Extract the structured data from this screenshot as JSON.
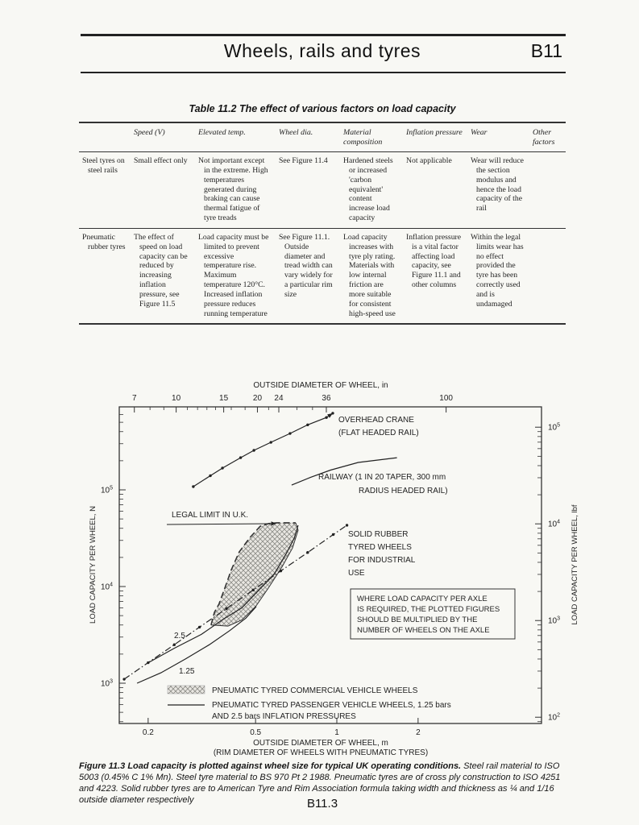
{
  "page": {
    "header": {
      "title": "Wheels, rails and tyres",
      "section": "B11"
    },
    "footer": {
      "page_number": "B11.3"
    }
  },
  "table": {
    "title": "Table 11.2  The effect of various factors on load capacity",
    "headers": [
      "",
      "Speed (V)",
      "Elevated temp.",
      "Wheel dia.",
      "Material composition",
      "Inflation pressure",
      "Wear",
      "Other factors"
    ],
    "rows": [
      [
        "Steel tyres on steel rails",
        "Small effect only",
        "Not important except in the extreme. High temperatures generated during braking can cause thermal fatigue of tyre treads",
        "See Figure 11.4",
        "Hardened steels or increased 'carbon equivalent' content increase load capacity",
        "Not applicable",
        "Wear will reduce the section modulus and hence the load capacity of the rail",
        ""
      ],
      [
        "Pneumatic rubber tyres",
        "The effect of speed on load capacity can be reduced by increasing inflation pressure, see Figure 11.5",
        "Load capacity must be limited to prevent excessive temperature rise. Maximum temperature 120°C. Increased inflation pressure reduces running temperature",
        "See Figure 11.1. Outside diameter and tread width can vary widely for a particular rim size",
        "Load capacity increases with tyre ply rating. Materials with low internal friction are more suitable for consistent high-speed use",
        "Inflation pressure is a vital factor affecting load capacity, see Figure 11.1 and other columns",
        "Within the legal limits wear has no effect provided the tyre has been correctly used and is undamaged",
        ""
      ]
    ]
  },
  "caption": {
    "bold": "Figure 11.3  Load capacity is plotted against wheel size for typical UK operating conditions.",
    "rest": " Steel rail material to ISO 5003 (0.45% C 1% Mn). Steel tyre material to BS 970 Pt 2 1988. Pneumatic tyres are of cross ply construction to ISO 4251 and 4223. Solid rubber tyres are to American Tyre and Rim Association formula taking width and thickness as ¼ and 1/16 outside diameter respectively"
  },
  "chart_data": {
    "type": "line",
    "x_axis": {
      "scale": "log",
      "top": {
        "label": "OUTSIDE DIAMETER OF WHEEL, in",
        "unit": "in",
        "major_ticks": [
          7,
          10,
          15,
          20,
          24,
          36,
          100
        ],
        "minor_ticks": [
          8,
          9,
          11,
          12,
          13,
          14,
          16,
          18,
          22,
          28,
          32
        ]
      },
      "bottom": {
        "label": "OUTSIDE DIAMETER OF WHEEL, m",
        "sublabel": "(RIM DIAMETER OF WHEELS WITH PNEUMATIC TYRES)",
        "unit": "m",
        "major_ticks": [
          0.2,
          0.5,
          1,
          2
        ]
      },
      "range_m": [
        0.156,
        5.7
      ]
    },
    "y_axis": {
      "scale": "log",
      "left": {
        "label": "LOAD CAPACITY PER WHEEL, N",
        "unit": "N",
        "major_tick_exponents": [
          5,
          4,
          3
        ]
      },
      "right": {
        "label": "LOAD CAPACITY PER WHEEL, lbf",
        "unit": "lbf",
        "major_tick_exponents": [
          5,
          4,
          3,
          2
        ]
      },
      "range_N": [
        383,
        720000
      ],
      "newtons_per_lbf": 4.448
    },
    "series": [
      {
        "id": "overhead_crane",
        "label_lines": [
          "OVERHEAD CRANE",
          "(FLAT HEADED RAIL)"
        ],
        "style": "solid",
        "markers": true,
        "arrow_end": true,
        "points_m_N": [
          [
            0.294,
            108000
          ],
          [
            0.34,
            140000
          ],
          [
            0.377,
            168000
          ],
          [
            0.44,
            215000
          ],
          [
            0.493,
            256000
          ],
          [
            0.57,
            310000
          ],
          [
            0.671,
            383000
          ],
          [
            0.78,
            470000
          ],
          [
            0.915,
            560000
          ],
          [
            0.966,
            620000
          ]
        ]
      },
      {
        "id": "railway",
        "label_lines": [
          "RAILWAY (1 IN 20 TAPER, 300 mm",
          "RADIUS HEADED RAIL)"
        ],
        "style": "solid",
        "markers": false,
        "arrow_end": false,
        "points_m_N": [
          [
            0.68,
            112000
          ],
          [
            0.8,
            135000
          ],
          [
            0.947,
            160000
          ],
          [
            1.2,
            192000
          ],
          [
            1.45,
            205000
          ],
          [
            1.67,
            215000
          ]
        ]
      },
      {
        "id": "solid_rubber",
        "label_lines": [
          "SOLID RUBBER",
          "TYRED WHEELS",
          "FOR INDUSTRIAL",
          "USE"
        ],
        "style": "dash-dot",
        "markers": true,
        "arrow_end": false,
        "points_m_N": [
          [
            0.163,
            1100
          ],
          [
            0.2,
            1630
          ],
          [
            0.25,
            2500
          ],
          [
            0.31,
            3800
          ],
          [
            0.39,
            5900
          ],
          [
            0.49,
            9200
          ],
          [
            0.62,
            14500
          ],
          [
            0.78,
            22500
          ],
          [
            0.97,
            34500
          ],
          [
            1.09,
            43000
          ]
        ]
      },
      {
        "id": "passenger_2_5_bar",
        "label_lines": [
          "2.5"
        ],
        "style": "solid",
        "markers": false,
        "arrow_end": false,
        "points_m_N": [
          [
            0.202,
            1650
          ],
          [
            0.25,
            2300
          ],
          [
            0.315,
            3200
          ],
          [
            0.38,
            4600
          ],
          [
            0.444,
            6000
          ],
          [
            0.52,
            9500
          ],
          [
            0.585,
            13300
          ],
          [
            0.65,
            22000
          ],
          [
            0.695,
            31600
          ],
          [
            0.719,
            43000
          ]
        ]
      },
      {
        "id": "passenger_1_25_bar",
        "label_lines": [
          "1.25"
        ],
        "style": "solid",
        "markers": false,
        "arrow_end": false,
        "points_m_N": [
          [
            0.182,
            1000
          ],
          [
            0.223,
            1280
          ],
          [
            0.275,
            1780
          ],
          [
            0.337,
            2500
          ],
          [
            0.401,
            3500
          ],
          [
            0.46,
            4700
          ],
          [
            0.503,
            6200
          ]
        ]
      }
    ],
    "region": {
      "id": "commercial_vehicle_wheels",
      "fill": "crosshatch",
      "upper_boundary_m_N": [
        [
          0.342,
          4000
        ],
        [
          0.352,
          5400
        ],
        [
          0.366,
          6600
        ],
        [
          0.385,
          9700
        ],
        [
          0.407,
          15000
        ],
        [
          0.435,
          22800
        ],
        [
          0.476,
          32000
        ],
        [
          0.52,
          42000
        ],
        [
          0.56,
          44800
        ],
        [
          0.6,
          45600
        ],
        [
          0.704,
          45600
        ]
      ],
      "lower_boundary_m_N": [
        [
          0.719,
          38300
        ],
        [
          0.685,
          25000
        ],
        [
          0.627,
          16000
        ],
        [
          0.557,
          9600
        ],
        [
          0.5,
          6200
        ],
        [
          0.444,
          4500
        ],
        [
          0.395,
          3900
        ],
        [
          0.342,
          4000
        ]
      ]
    },
    "annotations": {
      "legal_limit": "LEGAL LIMIT IN U.K.",
      "note_box_lines": [
        "WHERE LOAD CAPACITY PER AXLE",
        "IS REQUIRED, THE PLOTTED FIGURES",
        "SHOULD BE MULTIPLIED BY THE",
        "NUMBER OF WHEELS ON THE AXLE"
      ]
    },
    "legend": [
      {
        "swatch": "hatch",
        "lines": [
          "PNEUMATIC TYRED COMMERCIAL VEHICLE WHEELS"
        ]
      },
      {
        "swatch": "line",
        "lines": [
          "PNEUMATIC TYRED PASSENGER VEHICLE WHEELS, 1.25 bars",
          "AND 2.5 bars INFLATION PRESSURES"
        ]
      }
    ]
  }
}
